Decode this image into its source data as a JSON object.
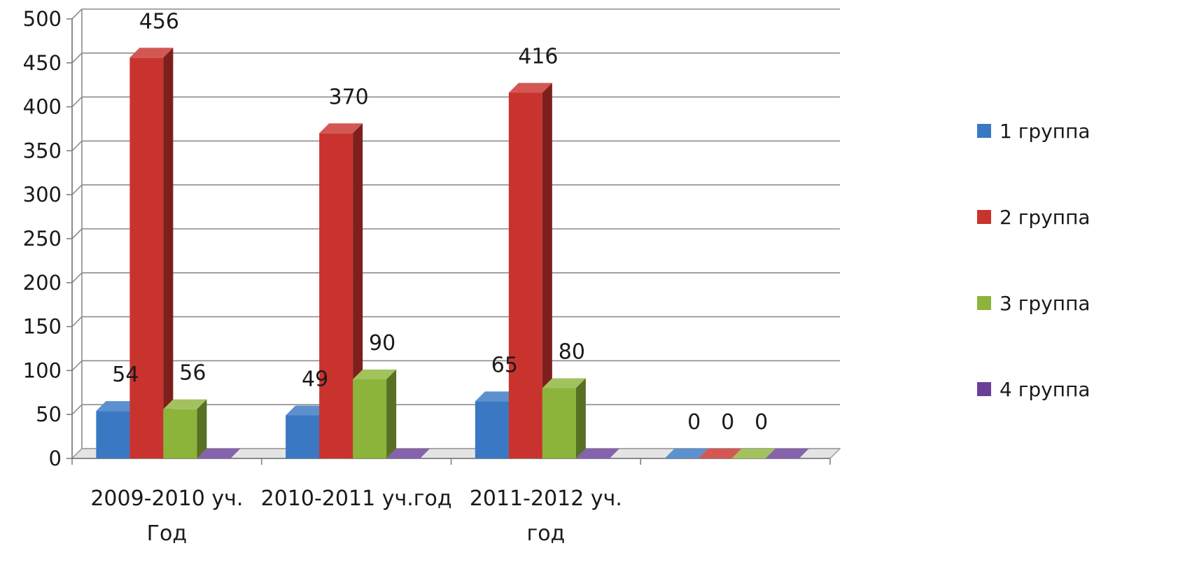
{
  "chart_data": {
    "type": "bar",
    "title": "",
    "xlabel": "",
    "ylabel": "",
    "ylim": [
      0,
      500
    ],
    "yticks": [
      0,
      50,
      100,
      150,
      200,
      250,
      300,
      350,
      400,
      450,
      500
    ],
    "grid": true,
    "legend_position": "right",
    "categories": [
      [
        "2009-2010 уч.",
        "Год"
      ],
      [
        "2010-2011 уч.год"
      ],
      [
        "2011-2012 уч.",
        "год"
      ],
      [
        ""
      ]
    ],
    "series": [
      {
        "name": "1 группа",
        "color": "#3a78c3",
        "values": [
          54,
          49,
          65,
          0
        ],
        "labels": [
          "54",
          "49",
          "65",
          "0"
        ]
      },
      {
        "name": "2 группа",
        "color": "#c9332e",
        "values": [
          456,
          370,
          416,
          0
        ],
        "labels": [
          "456",
          "370",
          "416",
          "0"
        ]
      },
      {
        "name": "3 группа",
        "color": "#8db43a",
        "values": [
          56,
          90,
          80,
          0
        ],
        "labels": [
          "56",
          "90",
          "80",
          "0"
        ]
      },
      {
        "name": "4 группа",
        "color": "#6a3f9a",
        "values": [
          0,
          0,
          0,
          0
        ],
        "labels": [
          "",
          "",
          "",
          ""
        ]
      }
    ]
  }
}
